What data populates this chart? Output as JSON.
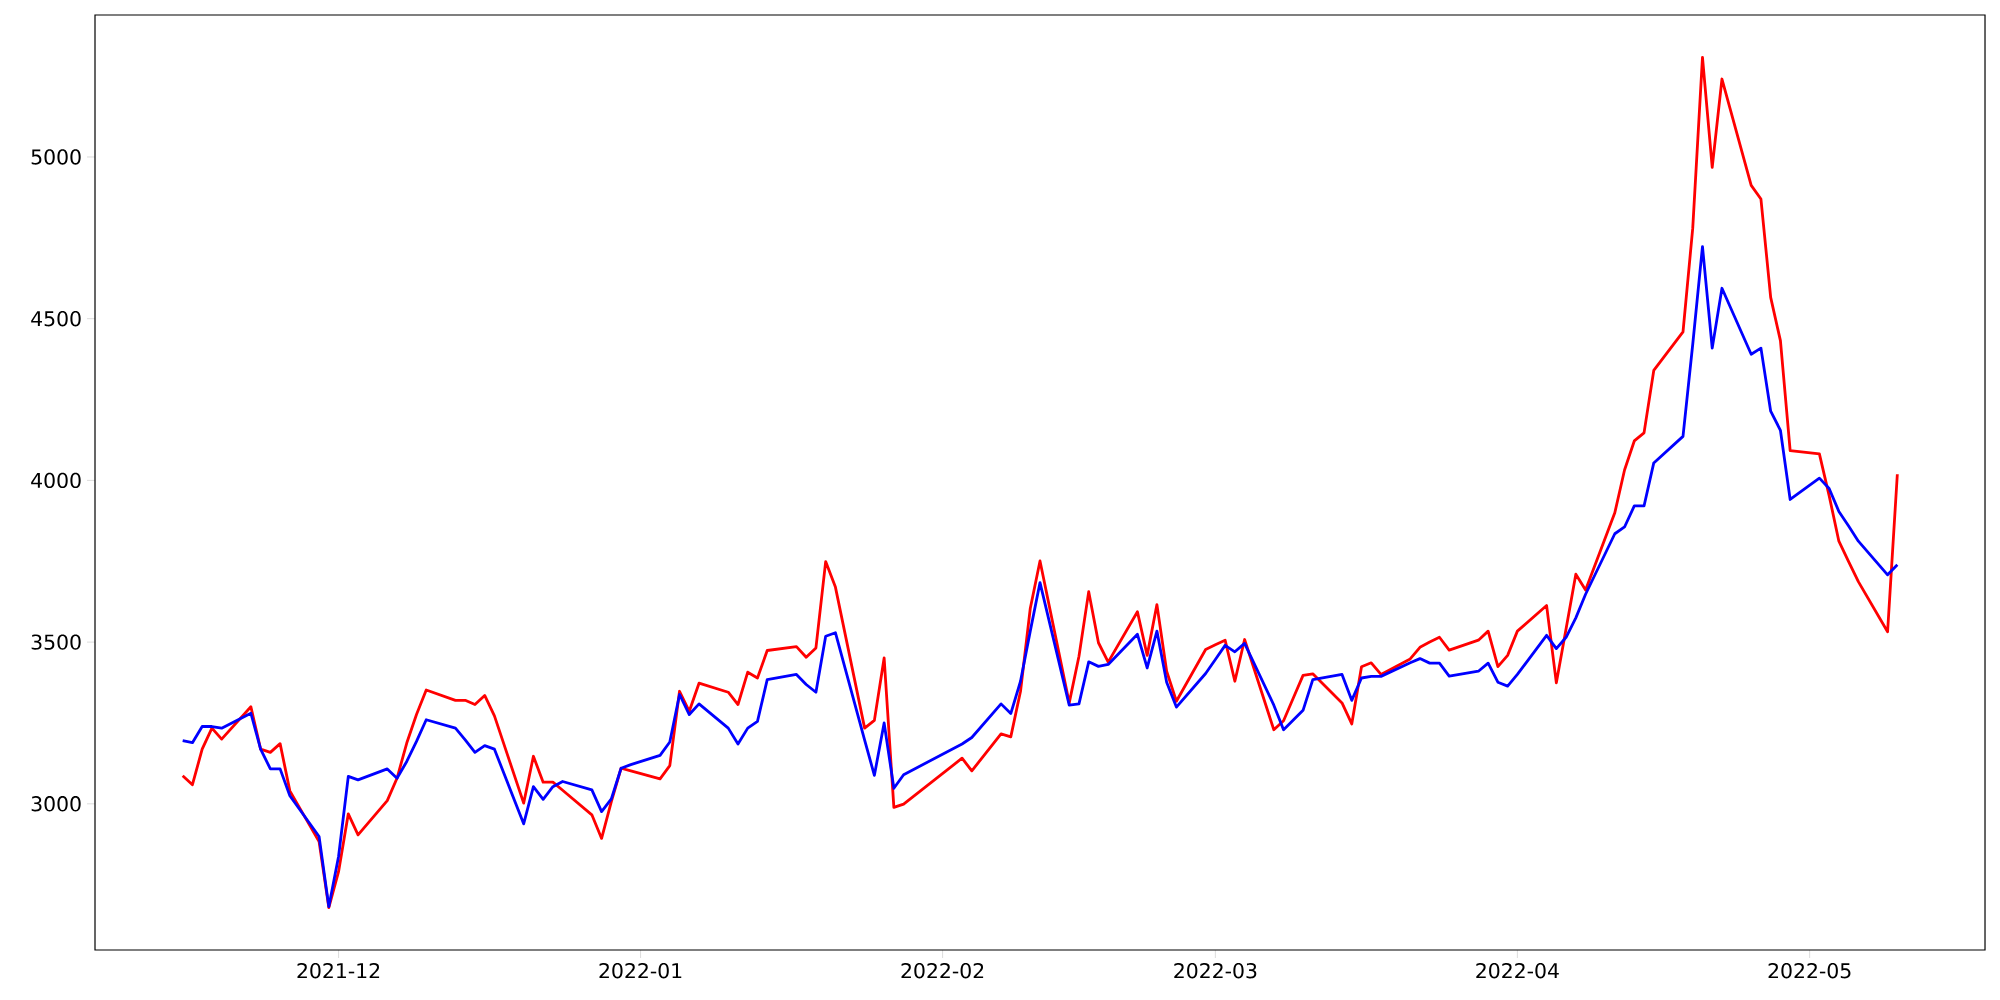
{
  "chart_data": {
    "type": "line",
    "x": [
      "2021-11-15",
      "2021-11-16",
      "2021-11-17",
      "2021-11-18",
      "2021-11-19",
      "2021-11-22",
      "2021-11-23",
      "2021-11-24",
      "2021-11-25",
      "2021-11-26",
      "2021-11-29",
      "2021-11-30",
      "2021-12-01",
      "2021-12-02",
      "2021-12-03",
      "2021-12-06",
      "2021-12-07",
      "2021-12-08",
      "2021-12-09",
      "2021-12-10",
      "2021-12-13",
      "2021-12-14",
      "2021-12-15",
      "2021-12-16",
      "2021-12-17",
      "2021-12-20",
      "2021-12-21",
      "2021-12-22",
      "2021-12-23",
      "2021-12-24",
      "2021-12-27",
      "2021-12-28",
      "2021-12-29",
      "2021-12-30",
      "2021-12-31",
      "2022-01-03",
      "2022-01-04",
      "2022-01-05",
      "2022-01-06",
      "2022-01-07",
      "2022-01-10",
      "2022-01-11",
      "2022-01-12",
      "2022-01-13",
      "2022-01-14",
      "2022-01-17",
      "2022-01-18",
      "2022-01-19",
      "2022-01-20",
      "2022-01-21",
      "2022-01-24",
      "2022-01-25",
      "2022-01-26",
      "2022-01-27",
      "2022-01-28",
      "2022-02-03",
      "2022-02-04",
      "2022-02-07",
      "2022-02-08",
      "2022-02-09",
      "2022-02-10",
      "2022-02-11",
      "2022-02-14",
      "2022-02-15",
      "2022-02-16",
      "2022-02-17",
      "2022-02-18",
      "2022-02-21",
      "2022-02-22",
      "2022-02-23",
      "2022-02-24",
      "2022-02-25",
      "2022-02-28",
      "2022-03-01",
      "2022-03-02",
      "2022-03-03",
      "2022-03-04",
      "2022-03-07",
      "2022-03-08",
      "2022-03-09",
      "2022-03-10",
      "2022-03-11",
      "2022-03-14",
      "2022-03-15",
      "2022-03-16",
      "2022-03-17",
      "2022-03-18",
      "2022-03-21",
      "2022-03-22",
      "2022-03-23",
      "2022-03-24",
      "2022-03-25",
      "2022-03-28",
      "2022-03-29",
      "2022-03-30",
      "2022-03-31",
      "2022-04-01",
      "2022-04-04",
      "2022-04-05",
      "2022-04-06",
      "2022-04-07",
      "2022-04-08",
      "2022-04-11",
      "2022-04-12",
      "2022-04-13",
      "2022-04-14",
      "2022-04-15",
      "2022-04-18",
      "2022-04-19",
      "2022-04-20",
      "2022-04-21",
      "2022-04-22",
      "2022-04-25",
      "2022-04-26",
      "2022-04-27",
      "2022-04-28",
      "2022-04-29",
      "2022-05-02",
      "2022-05-03",
      "2022-05-04",
      "2022-05-05",
      "2022-05-06",
      "2022-05-09",
      "2022-05-10"
    ],
    "series": [
      {
        "color": "#ff0000",
        "values": [
          3087,
          3059,
          3169,
          3234,
          3200,
          3300,
          3169,
          3159,
          3186,
          3040,
          2883,
          2679,
          2790,
          2969,
          2904,
          3010,
          3079,
          3188,
          3276,
          3352,
          3320,
          3320,
          3307,
          3335,
          3272,
          3002,
          3147,
          3067,
          3067,
          3042,
          2966,
          2893,
          3007,
          3110,
          3102,
          3077,
          3118,
          3348,
          3286,
          3373,
          3345,
          3307,
          3407,
          3389,
          3474,
          3486,
          3453,
          3482,
          3749,
          3670,
          3234,
          3258,
          3451,
          2989,
          2999,
          3141,
          3102,
          3216,
          3207,
          3348,
          3604,
          3751,
          3312,
          3456,
          3656,
          3498,
          3438,
          3594,
          3459,
          3616,
          3410,
          3317,
          3477,
          3492,
          3506,
          3379,
          3508,
          3229,
          3257,
          3327,
          3397,
          3402,
          3312,
          3247,
          3424,
          3436,
          3400,
          3448,
          3484,
          3500,
          3515,
          3475,
          3506,
          3534,
          3424,
          3459,
          3534,
          3613,
          3374,
          3541,
          3710,
          3661,
          3900,
          4032,
          4122,
          4147,
          4340,
          4459,
          4780,
          5308,
          4968,
          5241,
          4912,
          4870,
          4566,
          4432,
          4092,
          4082,
          3953,
          3812,
          3749,
          3687,
          3532,
          4019
        ]
      },
      {
        "color": "#0000ff",
        "values": [
          3195,
          3189,
          3239,
          3239,
          3234,
          3280,
          3169,
          3108,
          3108,
          3025,
          2899,
          2682,
          2837,
          3085,
          3074,
          3108,
          3079,
          3131,
          3193,
          3260,
          3234,
          3198,
          3159,
          3180,
          3169,
          2938,
          3053,
          3014,
          3053,
          3069,
          3043,
          2976,
          3015,
          3110,
          3121,
          3150,
          3191,
          3338,
          3276,
          3309,
          3234,
          3185,
          3234,
          3255,
          3384,
          3400,
          3369,
          3345,
          3518,
          3529,
          3197,
          3088,
          3250,
          3048,
          3090,
          3185,
          3205,
          3309,
          3279,
          3379,
          3534,
          3684,
          3305,
          3309,
          3439,
          3425,
          3431,
          3524,
          3420,
          3534,
          3376,
          3299,
          3403,
          3446,
          3490,
          3470,
          3496,
          3305,
          3229,
          3259,
          3289,
          3384,
          3400,
          3320,
          3389,
          3394,
          3394,
          3436,
          3449,
          3435,
          3435,
          3395,
          3410,
          3435,
          3376,
          3364,
          3400,
          3521,
          3480,
          3515,
          3575,
          3648,
          3835,
          3856,
          3921,
          3921,
          4054,
          4136,
          4421,
          4723,
          4409,
          4594,
          4390,
          4409,
          4214,
          4155,
          3941,
          4007,
          3975,
          3904,
          3859,
          3812,
          3708,
          3739
        ]
      }
    ],
    "xlim": [
      "2021-11-06",
      "2022-05-19"
    ],
    "ylim": [
      2548,
      5439
    ],
    "xticks": [
      {
        "value": "2021-12-01",
        "label": "2021-12"
      },
      {
        "value": "2022-01-01",
        "label": "2022-01"
      },
      {
        "value": "2022-02-01",
        "label": "2022-02"
      },
      {
        "value": "2022-03-01",
        "label": "2022-03"
      },
      {
        "value": "2022-04-01",
        "label": "2022-04"
      },
      {
        "value": "2022-05-01",
        "label": "2022-05"
      }
    ],
    "yticks": [
      3000,
      3500,
      4000,
      4500,
      5000
    ]
  }
}
